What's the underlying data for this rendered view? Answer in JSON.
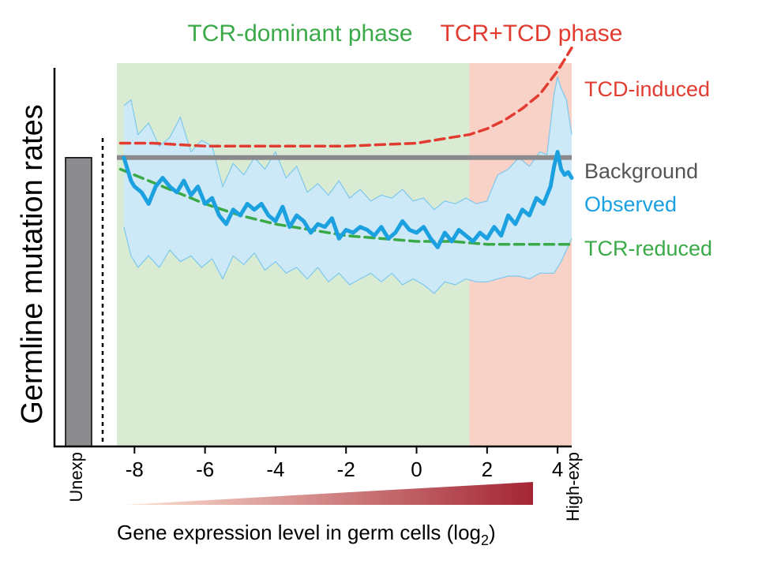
{
  "chart_data": {
    "type": "line",
    "title": "",
    "xlabel": "Gene expression level in germ cells (log",
    "xlabel_sub": "2",
    "xlabel_end": ")",
    "ylabel": "Germline mutation rates",
    "x_ticks": [
      -8,
      -6,
      -4,
      -2,
      0,
      2,
      4
    ],
    "x_tick_labels": [
      "-8",
      "-6",
      "-4",
      "-2",
      "0",
      "2",
      "4"
    ],
    "xlim": [
      -8.5,
      4.4
    ],
    "ylim": [
      0,
      1.3
    ],
    "category_labels": {
      "unexpressed": "Unexp",
      "high_expressed": "High-exp"
    },
    "unexp_bar_value": 1.0,
    "phases": [
      {
        "label": "TCR-dominant phase",
        "x_start": -8.5,
        "x_end": 1.5,
        "color": "#d9ebd3",
        "label_color": "#3aaa48"
      },
      {
        "label": "TCR+TCD phase",
        "x_start": 1.5,
        "x_end": 4.4,
        "color": "#f8d2c6",
        "label_color": "#e23c31"
      }
    ],
    "series": [
      {
        "name": "TCD-induced",
        "style": "dashed",
        "color": "#e23c31",
        "x": [
          -8.4,
          -7.5,
          -6,
          -4,
          -2,
          0,
          1,
          1.5,
          2,
          2.5,
          3,
          3.5,
          4,
          4.4
        ],
        "values": [
          1.05,
          1.05,
          1.04,
          1.04,
          1.04,
          1.05,
          1.07,
          1.08,
          1.1,
          1.13,
          1.17,
          1.22,
          1.3,
          1.38
        ]
      },
      {
        "name": "Background",
        "style": "solid",
        "color": "#8a8a8c",
        "x": [
          -8.5,
          4.4
        ],
        "values": [
          1.0,
          1.0
        ]
      },
      {
        "name": "Observed",
        "style": "solid",
        "color": "#1ca1e0",
        "x": [
          -8.3,
          -8.2,
          -8.1,
          -8.0,
          -7.8,
          -7.6,
          -7.4,
          -7.2,
          -7.0,
          -6.8,
          -6.6,
          -6.4,
          -6.2,
          -6.0,
          -5.8,
          -5.6,
          -5.4,
          -5.2,
          -5.0,
          -4.8,
          -4.6,
          -4.4,
          -4.2,
          -4.0,
          -3.8,
          -3.6,
          -3.4,
          -3.2,
          -3.0,
          -2.8,
          -2.6,
          -2.4,
          -2.2,
          -2.0,
          -1.8,
          -1.6,
          -1.4,
          -1.2,
          -1.0,
          -0.8,
          -0.6,
          -0.4,
          -0.2,
          0.0,
          0.2,
          0.4,
          0.6,
          0.8,
          1.0,
          1.2,
          1.4,
          1.6,
          1.8,
          2.0,
          2.2,
          2.4,
          2.6,
          2.8,
          3.0,
          3.2,
          3.4,
          3.6,
          3.8,
          3.9,
          4.0,
          4.1,
          4.2,
          4.3,
          4.4
        ],
        "values": [
          1.0,
          0.96,
          0.92,
          0.9,
          0.88,
          0.84,
          0.9,
          0.93,
          0.9,
          0.88,
          0.92,
          0.87,
          0.9,
          0.84,
          0.86,
          0.8,
          0.77,
          0.82,
          0.8,
          0.84,
          0.82,
          0.84,
          0.8,
          0.78,
          0.83,
          0.76,
          0.8,
          0.78,
          0.74,
          0.77,
          0.76,
          0.79,
          0.72,
          0.75,
          0.74,
          0.76,
          0.75,
          0.73,
          0.76,
          0.72,
          0.74,
          0.78,
          0.75,
          0.74,
          0.76,
          0.72,
          0.69,
          0.74,
          0.71,
          0.75,
          0.73,
          0.71,
          0.74,
          0.72,
          0.76,
          0.73,
          0.8,
          0.77,
          0.82,
          0.8,
          0.86,
          0.84,
          0.9,
          0.97,
          1.02,
          0.96,
          0.94,
          0.95,
          0.93
        ]
      },
      {
        "name": "Observed upper band",
        "style": "band",
        "color": "#cde8f7",
        "x": [
          -8.3,
          -8.1,
          -7.9,
          -7.6,
          -7.3,
          -7.0,
          -6.7,
          -6.4,
          -6.1,
          -5.8,
          -5.5,
          -5.2,
          -4.9,
          -4.6,
          -4.3,
          -4.0,
          -3.7,
          -3.4,
          -3.1,
          -2.8,
          -2.5,
          -2.2,
          -1.9,
          -1.6,
          -1.3,
          -1.0,
          -0.7,
          -0.4,
          -0.1,
          0.2,
          0.5,
          0.8,
          1.1,
          1.4,
          1.7,
          2.0,
          2.3,
          2.6,
          2.9,
          3.2,
          3.5,
          3.7,
          3.9,
          4.0,
          4.1,
          4.25,
          4.4
        ],
        "values": [
          1.18,
          1.2,
          1.08,
          1.12,
          1.04,
          1.07,
          1.14,
          1.02,
          1.06,
          1.04,
          0.9,
          0.98,
          0.94,
          1.0,
          0.96,
          1.02,
          0.93,
          0.97,
          0.88,
          0.91,
          0.87,
          0.92,
          0.86,
          0.89,
          0.85,
          0.87,
          0.86,
          0.89,
          0.85,
          0.86,
          0.82,
          0.85,
          0.84,
          0.86,
          0.84,
          0.85,
          0.94,
          0.96,
          1.0,
          0.97,
          1.02,
          1.01,
          1.22,
          1.28,
          1.24,
          1.2,
          1.08
        ]
      },
      {
        "name": "Observed lower band",
        "style": "band",
        "color": "#cde8f7",
        "x": [
          -8.3,
          -8.1,
          -7.9,
          -7.6,
          -7.3,
          -7.0,
          -6.7,
          -6.4,
          -6.1,
          -5.8,
          -5.5,
          -5.2,
          -4.9,
          -4.6,
          -4.3,
          -4.0,
          -3.7,
          -3.4,
          -3.1,
          -2.8,
          -2.5,
          -2.2,
          -1.9,
          -1.6,
          -1.3,
          -1.0,
          -0.7,
          -0.4,
          -0.1,
          0.2,
          0.5,
          0.8,
          1.1,
          1.4,
          1.7,
          2.0,
          2.3,
          2.6,
          2.9,
          3.2,
          3.5,
          3.7,
          3.9,
          4.0,
          4.1,
          4.25,
          4.4
        ],
        "values": [
          0.76,
          0.66,
          0.62,
          0.66,
          0.62,
          0.68,
          0.64,
          0.66,
          0.62,
          0.65,
          0.58,
          0.66,
          0.63,
          0.67,
          0.61,
          0.64,
          0.6,
          0.62,
          0.58,
          0.62,
          0.57,
          0.6,
          0.56,
          0.58,
          0.6,
          0.57,
          0.6,
          0.56,
          0.58,
          0.56,
          0.53,
          0.57,
          0.56,
          0.58,
          0.57,
          0.57,
          0.58,
          0.59,
          0.59,
          0.58,
          0.6,
          0.6,
          0.6,
          0.62,
          0.64,
          0.68,
          0.72
        ]
      },
      {
        "name": "TCR-reduced",
        "style": "dashed",
        "color": "#3aaa48",
        "x": [
          -8.4,
          -8,
          -7,
          -6,
          -5,
          -4,
          -3,
          -2,
          -1,
          0,
          1,
          2,
          3,
          4,
          4.4
        ],
        "values": [
          0.96,
          0.94,
          0.89,
          0.84,
          0.8,
          0.77,
          0.75,
          0.73,
          0.72,
          0.71,
          0.71,
          0.7,
          0.7,
          0.7,
          0.7
        ]
      }
    ],
    "legend_labels": {
      "tcd": "TCD-induced",
      "background": "Background",
      "observed": "Observed",
      "tcr": "TCR-reduced"
    },
    "colors": {
      "red": "#e23c31",
      "green": "#3aaa48",
      "blue": "#1ca1e0",
      "gray": "#8a8a8c",
      "bar": "#8c8c8f",
      "gradient_start": "#fde3d3",
      "gradient_end": "#a42535"
    }
  }
}
